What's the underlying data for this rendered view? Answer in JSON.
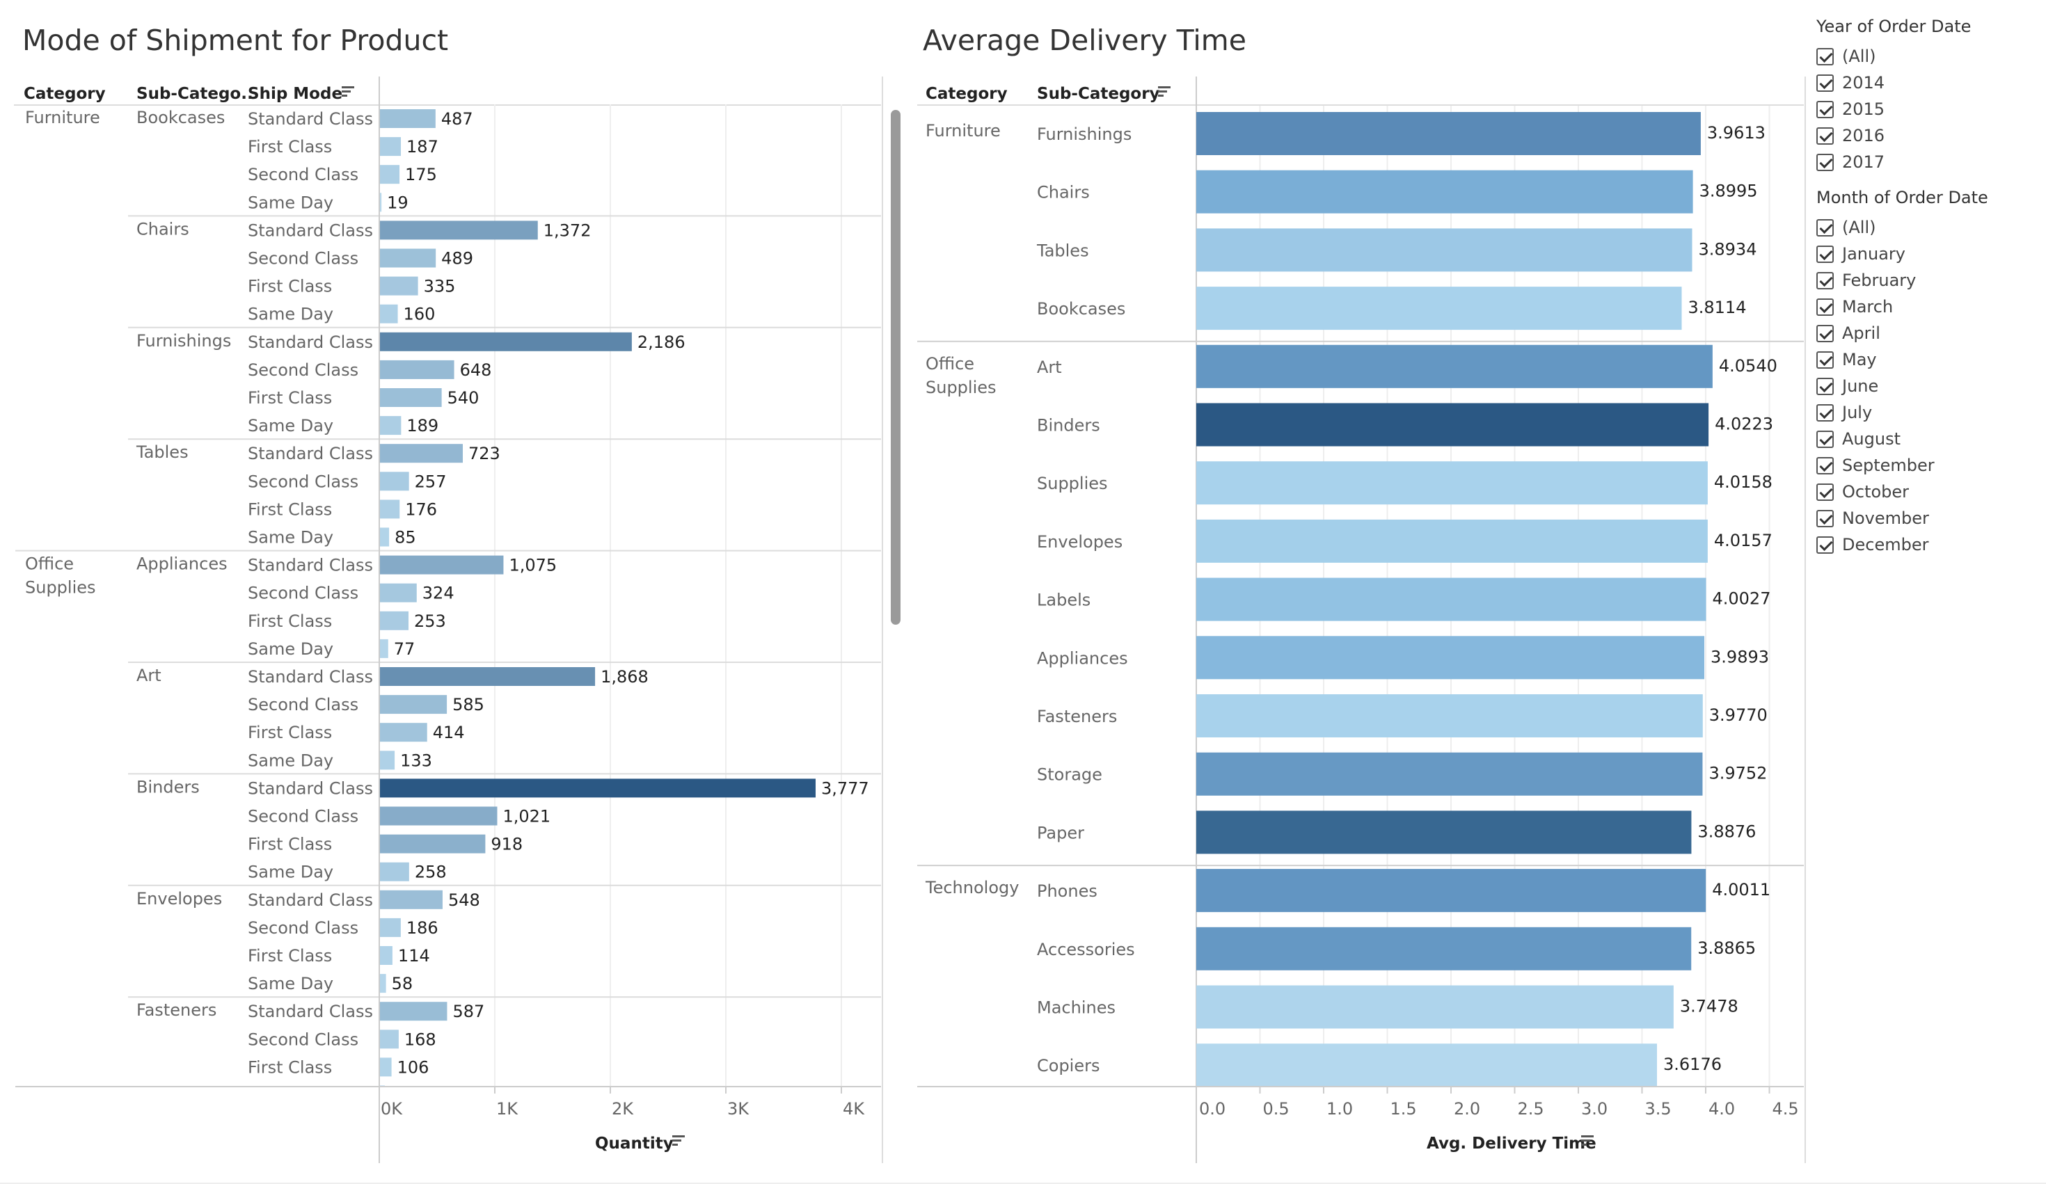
{
  "chart_data": [
    {
      "type": "bar",
      "title": "Mode of Shipment for Product",
      "columns": [
        "Category",
        "Sub-Catego..",
        "Ship Mode"
      ],
      "xlabel": "Quantity",
      "xlim": [
        0,
        4500
      ],
      "xticks": [
        {
          "value": 0,
          "label": "0K"
        },
        {
          "value": 1000,
          "label": "1K"
        },
        {
          "value": 2000,
          "label": "2K"
        },
        {
          "value": 3000,
          "label": "3K"
        },
        {
          "value": 4000,
          "label": "4K"
        }
      ],
      "rows": [
        {
          "category": "Furniture",
          "subcategory": "Bookcases",
          "ship_mode": "Standard Class",
          "value": 487,
          "label": "487"
        },
        {
          "category": "Furniture",
          "subcategory": "Bookcases",
          "ship_mode": "First Class",
          "value": 187,
          "label": "187"
        },
        {
          "category": "Furniture",
          "subcategory": "Bookcases",
          "ship_mode": "Second Class",
          "value": 175,
          "label": "175"
        },
        {
          "category": "Furniture",
          "subcategory": "Bookcases",
          "ship_mode": "Same Day",
          "value": 19,
          "label": "19"
        },
        {
          "category": "Furniture",
          "subcategory": "Chairs",
          "ship_mode": "Standard Class",
          "value": 1372,
          "label": "1,372"
        },
        {
          "category": "Furniture",
          "subcategory": "Chairs",
          "ship_mode": "Second Class",
          "value": 489,
          "label": "489"
        },
        {
          "category": "Furniture",
          "subcategory": "Chairs",
          "ship_mode": "First Class",
          "value": 335,
          "label": "335"
        },
        {
          "category": "Furniture",
          "subcategory": "Chairs",
          "ship_mode": "Same Day",
          "value": 160,
          "label": "160"
        },
        {
          "category": "Furniture",
          "subcategory": "Furnishings",
          "ship_mode": "Standard Class",
          "value": 2186,
          "label": "2,186"
        },
        {
          "category": "Furniture",
          "subcategory": "Furnishings",
          "ship_mode": "Second Class",
          "value": 648,
          "label": "648"
        },
        {
          "category": "Furniture",
          "subcategory": "Furnishings",
          "ship_mode": "First Class",
          "value": 540,
          "label": "540"
        },
        {
          "category": "Furniture",
          "subcategory": "Furnishings",
          "ship_mode": "Same Day",
          "value": 189,
          "label": "189"
        },
        {
          "category": "Furniture",
          "subcategory": "Tables",
          "ship_mode": "Standard Class",
          "value": 723,
          "label": "723"
        },
        {
          "category": "Furniture",
          "subcategory": "Tables",
          "ship_mode": "Second Class",
          "value": 257,
          "label": "257"
        },
        {
          "category": "Furniture",
          "subcategory": "Tables",
          "ship_mode": "First Class",
          "value": 176,
          "label": "176"
        },
        {
          "category": "Furniture",
          "subcategory": "Tables",
          "ship_mode": "Same Day",
          "value": 85,
          "label": "85"
        },
        {
          "category": "Office Supplies",
          "subcategory": "Appliances",
          "ship_mode": "Standard Class",
          "value": 1075,
          "label": "1,075"
        },
        {
          "category": "Office Supplies",
          "subcategory": "Appliances",
          "ship_mode": "Second Class",
          "value": 324,
          "label": "324"
        },
        {
          "category": "Office Supplies",
          "subcategory": "Appliances",
          "ship_mode": "First Class",
          "value": 253,
          "label": "253"
        },
        {
          "category": "Office Supplies",
          "subcategory": "Appliances",
          "ship_mode": "Same Day",
          "value": 77,
          "label": "77"
        },
        {
          "category": "Office Supplies",
          "subcategory": "Art",
          "ship_mode": "Standard Class",
          "value": 1868,
          "label": "1,868"
        },
        {
          "category": "Office Supplies",
          "subcategory": "Art",
          "ship_mode": "Second Class",
          "value": 585,
          "label": "585"
        },
        {
          "category": "Office Supplies",
          "subcategory": "Art",
          "ship_mode": "First Class",
          "value": 414,
          "label": "414"
        },
        {
          "category": "Office Supplies",
          "subcategory": "Art",
          "ship_mode": "Same Day",
          "value": 133,
          "label": "133"
        },
        {
          "category": "Office Supplies",
          "subcategory": "Binders",
          "ship_mode": "Standard Class",
          "value": 3777,
          "label": "3,777"
        },
        {
          "category": "Office Supplies",
          "subcategory": "Binders",
          "ship_mode": "Second Class",
          "value": 1021,
          "label": "1,021"
        },
        {
          "category": "Office Supplies",
          "subcategory": "Binders",
          "ship_mode": "First Class",
          "value": 918,
          "label": "918"
        },
        {
          "category": "Office Supplies",
          "subcategory": "Binders",
          "ship_mode": "Same Day",
          "value": 258,
          "label": "258"
        },
        {
          "category": "Office Supplies",
          "subcategory": "Envelopes",
          "ship_mode": "Standard Class",
          "value": 548,
          "label": "548"
        },
        {
          "category": "Office Supplies",
          "subcategory": "Envelopes",
          "ship_mode": "Second Class",
          "value": 186,
          "label": "186"
        },
        {
          "category": "Office Supplies",
          "subcategory": "Envelopes",
          "ship_mode": "First Class",
          "value": 114,
          "label": "114"
        },
        {
          "category": "Office Supplies",
          "subcategory": "Envelopes",
          "ship_mode": "Same Day",
          "value": 58,
          "label": "58"
        },
        {
          "category": "Office Supplies",
          "subcategory": "Fasteners",
          "ship_mode": "Standard Class",
          "value": 587,
          "label": "587"
        },
        {
          "category": "Office Supplies",
          "subcategory": "Fasteners",
          "ship_mode": "Second Class",
          "value": 168,
          "label": "168"
        },
        {
          "category": "Office Supplies",
          "subcategory": "Fasteners",
          "ship_mode": "First Class",
          "value": 106,
          "label": "106"
        }
      ],
      "color_scale": [
        "#b9daee",
        "#2b5884"
      ]
    },
    {
      "type": "bar",
      "title": "Average Delivery Time",
      "columns": [
        "Category",
        "Sub-Category"
      ],
      "xlabel": "Avg. Delivery Time",
      "xlim": [
        0,
        4.75
      ],
      "xticks": [
        {
          "value": 0.0,
          "label": "0.0"
        },
        {
          "value": 0.5,
          "label": "0.5"
        },
        {
          "value": 1.0,
          "label": "1.0"
        },
        {
          "value": 1.5,
          "label": "1.5"
        },
        {
          "value": 2.0,
          "label": "2.0"
        },
        {
          "value": 2.5,
          "label": "2.5"
        },
        {
          "value": 3.0,
          "label": "3.0"
        },
        {
          "value": 3.5,
          "label": "3.5"
        },
        {
          "value": 4.0,
          "label": "4.0"
        },
        {
          "value": 4.5,
          "label": "4.5"
        }
      ],
      "groups": [
        {
          "category": "Furniture",
          "items": [
            {
              "subcategory": "Furnishings",
              "value": 3.9613,
              "label": "3.9613",
              "color": "#5a8ab7"
            },
            {
              "subcategory": "Chairs",
              "value": 3.8995,
              "label": "3.8995",
              "color": "#7aaed6"
            },
            {
              "subcategory": "Tables",
              "value": 3.8934,
              "label": "3.8934",
              "color": "#9cc8e6"
            },
            {
              "subcategory": "Bookcases",
              "value": 3.8114,
              "label": "3.8114",
              "color": "#a8d2ec"
            }
          ]
        },
        {
          "category": "Office Supplies",
          "items": [
            {
              "subcategory": "Art",
              "value": 4.054,
              "label": "4.0540",
              "color": "#6497c3"
            },
            {
              "subcategory": "Binders",
              "value": 4.0223,
              "label": "4.0223",
              "color": "#2b5884"
            },
            {
              "subcategory": "Supplies",
              "value": 4.0158,
              "label": "4.0158",
              "color": "#a8d2ec"
            },
            {
              "subcategory": "Envelopes",
              "value": 4.0157,
              "label": "4.0157",
              "color": "#a3cfea"
            },
            {
              "subcategory": "Labels",
              "value": 4.0027,
              "label": "4.0027",
              "color": "#92c2e3"
            },
            {
              "subcategory": "Appliances",
              "value": 3.9893,
              "label": "3.9893",
              "color": "#86b8dd"
            },
            {
              "subcategory": "Fasteners",
              "value": 3.977,
              "label": "3.9770",
              "color": "#a8d2ec"
            },
            {
              "subcategory": "Storage",
              "value": 3.9752,
              "label": "3.9752",
              "color": "#6799c4"
            },
            {
              "subcategory": "Paper",
              "value": 3.8876,
              "label": "3.8876",
              "color": "#386892"
            }
          ]
        },
        {
          "category": "Technology",
          "items": [
            {
              "subcategory": "Phones",
              "value": 4.0011,
              "label": "4.0011",
              "color": "#6295c2"
            },
            {
              "subcategory": "Accessories",
              "value": 3.8865,
              "label": "3.8865",
              "color": "#6598c4"
            },
            {
              "subcategory": "Machines",
              "value": 3.7478,
              "label": "3.7478",
              "color": "#aed4ec"
            },
            {
              "subcategory": "Copiers",
              "value": 3.6176,
              "label": "3.6176",
              "color": "#b4d8ee"
            }
          ]
        }
      ]
    }
  ],
  "filters": {
    "year": {
      "title": "Year of Order Date",
      "options": [
        "(All)",
        "2014",
        "2015",
        "2016",
        "2017"
      ]
    },
    "month": {
      "title": "Month of Order Date",
      "options": [
        "(All)",
        "January",
        "February",
        "March",
        "April",
        "May",
        "June",
        "July",
        "August",
        "September",
        "October",
        "November",
        "December"
      ]
    }
  }
}
